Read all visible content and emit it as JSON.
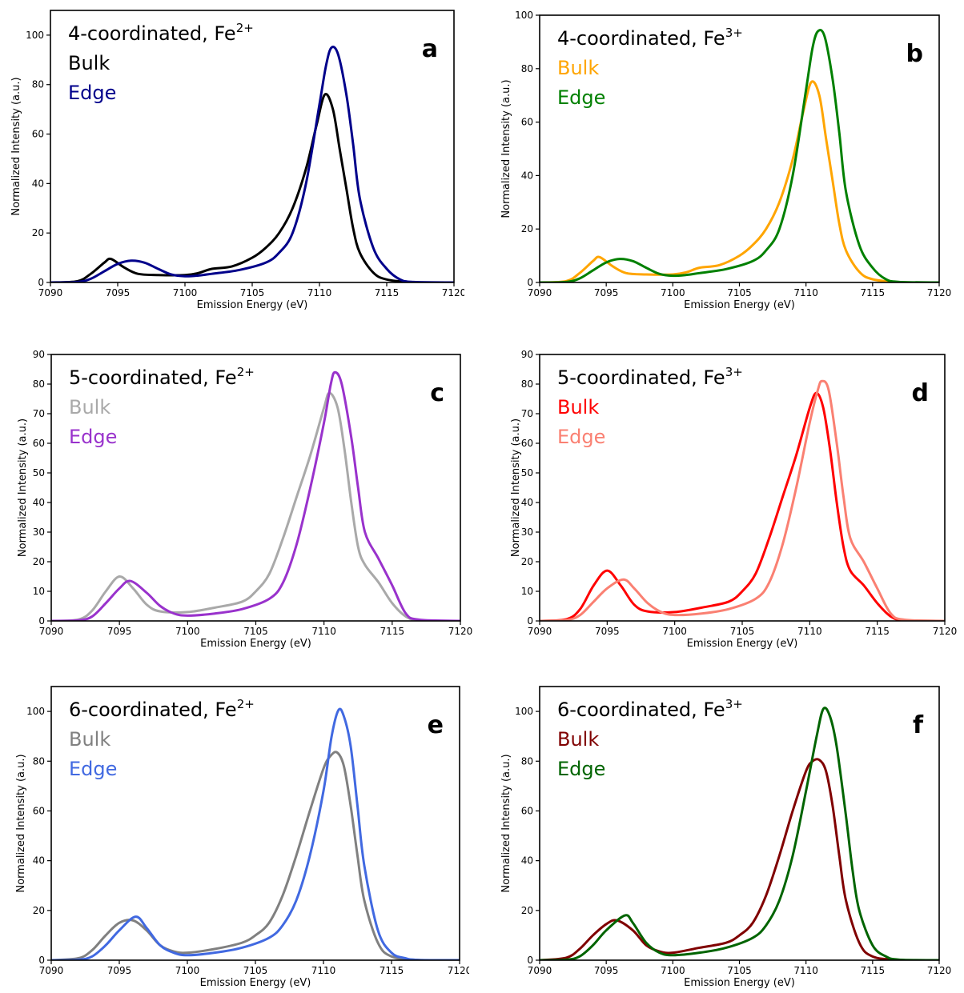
{
  "chart_data": [
    {
      "type": "line",
      "letter": "a",
      "title_text": "4-coordinated, Fe",
      "title_sup": "2+",
      "xlabel": "Emission Energy (eV)",
      "ylabel": "Normalized Intensity (a.u.)",
      "xlim": [
        7090,
        7120
      ],
      "ylim": [
        0,
        110
      ],
      "xticks": [
        7090,
        7095,
        7100,
        7105,
        7110,
        7115,
        7120
      ],
      "yticks": [
        0,
        20,
        40,
        60,
        80,
        100
      ],
      "series": [
        {
          "name": "Bulk",
          "color": "#000000",
          "x": [
            7090,
            7092,
            7093,
            7094,
            7094.5,
            7095.5,
            7096.5,
            7098,
            7100,
            7101,
            7102,
            7103.5,
            7105,
            7106,
            7107,
            7108,
            7109,
            7109.8,
            7110.4,
            7111,
            7111.5,
            7112,
            7112.5,
            7113,
            7114,
            7115,
            7117,
            7120
          ],
          "y": [
            0,
            0.5,
            3.5,
            8,
            9.5,
            6,
            3.5,
            3,
            3,
            3.8,
            5.5,
            6.5,
            10,
            14,
            20,
            30,
            46,
            64,
            76,
            70,
            54,
            38,
            22,
            12,
            4,
            1.2,
            0.1,
            0
          ]
        },
        {
          "name": "Edge",
          "color": "#00008B",
          "x": [
            7090,
            7092,
            7093,
            7094,
            7095,
            7096,
            7097,
            7098,
            7099,
            7100,
            7101,
            7102,
            7104,
            7106,
            7107,
            7108,
            7109,
            7110,
            7110.5,
            7110.9,
            7111.4,
            7112,
            7112.5,
            7113,
            7114,
            7115,
            7116,
            7117,
            7120
          ],
          "y": [
            0,
            0.2,
            1.5,
            4.5,
            7.5,
            8.8,
            8,
            5.5,
            3.2,
            2.5,
            2.8,
            3.5,
            5,
            8,
            12,
            20,
            40,
            72,
            88,
            95,
            92,
            76,
            56,
            34,
            14,
            5.5,
            1.2,
            0.2,
            0
          ]
        }
      ]
    },
    {
      "type": "line",
      "letter": "b",
      "title_text": "4-coordinated, Fe",
      "title_sup": "3+",
      "xlabel": "Emission Energy (eV)",
      "ylabel": "Normalized Intensity (a.u.)",
      "xlim": [
        7090,
        7120
      ],
      "ylim": [
        0,
        100
      ],
      "xticks": [
        7090,
        7095,
        7100,
        7105,
        7110,
        7115,
        7120
      ],
      "yticks": [
        0,
        20,
        40,
        60,
        80,
        100
      ],
      "series": [
        {
          "name": "Bulk",
          "color": "#FFA500",
          "x": [
            7090,
            7092,
            7093,
            7094,
            7094.5,
            7095.5,
            7096.5,
            7098,
            7100,
            7101,
            7102,
            7103.5,
            7105,
            7106,
            7107,
            7108,
            7109,
            7109.8,
            7110.4,
            7111,
            7111.5,
            7112,
            7112.5,
            7113,
            7114,
            7115,
            7117,
            7120
          ],
          "y": [
            0,
            0.5,
            3.5,
            8,
            9.5,
            6,
            3.5,
            3,
            3,
            3.8,
            5.5,
            6.5,
            10,
            14,
            20,
            30,
            46,
            64,
            75,
            70,
            54,
            38,
            22,
            12,
            4,
            1.2,
            0.1,
            0
          ]
        },
        {
          "name": "Edge",
          "color": "#008000",
          "x": [
            7090,
            7092,
            7093,
            7094,
            7095,
            7096,
            7097,
            7098,
            7099,
            7100,
            7101,
            7102,
            7104,
            7106,
            7107,
            7108,
            7109,
            7110,
            7110.5,
            7110.9,
            7111.4,
            7112,
            7112.5,
            7113,
            7114,
            7115,
            7116,
            7117,
            7120
          ],
          "y": [
            0,
            0.2,
            1.5,
            4.5,
            7.5,
            8.8,
            8,
            5.5,
            3.2,
            2.5,
            2.8,
            3.5,
            5,
            8,
            12,
            20,
            40,
            72,
            88,
            94,
            92,
            76,
            56,
            34,
            14,
            5.5,
            1.2,
            0.2,
            0
          ]
        }
      ]
    },
    {
      "type": "line",
      "letter": "c",
      "title_text": "5-coordinated, Fe",
      "title_sup": "2+",
      "xlabel": "Emission Energy (eV)",
      "ylabel": "Normalized Intensity (a.u.)",
      "xlim": [
        7090,
        7120
      ],
      "ylim": [
        0,
        90
      ],
      "xticks": [
        7090,
        7095,
        7100,
        7105,
        7110,
        7115,
        7120
      ],
      "yticks": [
        0,
        10,
        20,
        30,
        40,
        50,
        60,
        70,
        80,
        90
      ],
      "series": [
        {
          "name": "Bulk",
          "color": "#A9A9A9",
          "x": [
            7090,
            7092,
            7093,
            7094,
            7095,
            7096,
            7097,
            7098,
            7100,
            7102,
            7104,
            7105,
            7106,
            7107,
            7108,
            7109,
            7110,
            7110.4,
            7111,
            7111.5,
            7112,
            7112.5,
            7113,
            7114,
            7115,
            7116,
            7117,
            7120
          ],
          "y": [
            0,
            0.5,
            3.5,
            10,
            15,
            11,
            5.5,
            3.2,
            3,
            4.5,
            6.5,
            10,
            16,
            28,
            42,
            56,
            72,
            77,
            72,
            58,
            40,
            25,
            19,
            13,
            6,
            1.5,
            0.2,
            0
          ]
        },
        {
          "name": "Edge",
          "color": "#9932CC",
          "x": [
            7090,
            7092,
            7093,
            7094,
            7095,
            7095.8,
            7097,
            7098,
            7099,
            7100,
            7102,
            7104,
            7106,
            7107,
            7108,
            7109,
            7110,
            7110.5,
            7110.8,
            7111.3,
            7112,
            7112.5,
            7113,
            7114,
            7115,
            7116,
            7117,
            7120
          ],
          "y": [
            0,
            0.2,
            1.5,
            6,
            11,
            13.5,
            9.5,
            5,
            2.5,
            1.8,
            2.5,
            4,
            7.5,
            13,
            26,
            45,
            67,
            80,
            84,
            80,
            62,
            45,
            30,
            21,
            12,
            2.5,
            0.4,
            0
          ]
        }
      ]
    },
    {
      "type": "line",
      "letter": "d",
      "title_text": "5-coordinated, Fe",
      "title_sup": "3+",
      "xlabel": "Emission Energy (eV)",
      "ylabel": "Normalized Intensity (a.u.)",
      "xlim": [
        7090,
        7120
      ],
      "ylim": [
        0,
        90
      ],
      "xticks": [
        7090,
        7095,
        7100,
        7105,
        7110,
        7115,
        7120
      ],
      "yticks": [
        0,
        10,
        20,
        30,
        40,
        50,
        60,
        70,
        80,
        90
      ],
      "series": [
        {
          "name": "Bulk",
          "color": "#FF0000",
          "x": [
            7090,
            7092,
            7093,
            7094,
            7095,
            7096,
            7097,
            7098,
            7100,
            7102,
            7104,
            7105,
            7106,
            7107,
            7108,
            7109,
            7110,
            7110.5,
            7111,
            7111.5,
            7112,
            7112.5,
            7113,
            7114,
            7115,
            7116,
            7117,
            7120
          ],
          "y": [
            0,
            0.6,
            4,
            12,
            17,
            12,
            5.5,
            3.2,
            3,
            4.5,
            6.5,
            10,
            16,
            28,
            42,
            56,
            72,
            77,
            72,
            58,
            40,
            25,
            17,
            12,
            6,
            1.5,
            0.2,
            0
          ]
        },
        {
          "name": "Edge",
          "color": "#FA8072",
          "x": [
            7090,
            7092,
            7093,
            7094,
            7095,
            7096.2,
            7097,
            7098,
            7099,
            7100,
            7102,
            7104,
            7106,
            7107,
            7108,
            7109,
            7110,
            7110.6,
            7110.9,
            7111.4,
            7112,
            7112.5,
            7113,
            7114,
            7115,
            7116,
            7117,
            7120
          ],
          "y": [
            0,
            0.3,
            2,
            6.5,
            11,
            14,
            11,
            6,
            3,
            2,
            2.5,
            4,
            7.5,
            13,
            26,
            45,
            67,
            78,
            81,
            78,
            60,
            42,
            28,
            20,
            11,
            2.5,
            0.4,
            0
          ]
        }
      ]
    },
    {
      "type": "line",
      "letter": "e",
      "title_text": "6-coordinated, Fe",
      "title_sup": "2+",
      "xlabel": "Emission Energy (eV)",
      "ylabel": "Normalized Intensity (a.u.)",
      "xlim": [
        7090,
        7120
      ],
      "ylim": [
        0,
        110
      ],
      "xticks": [
        7090,
        7095,
        7100,
        7105,
        7110,
        7115,
        7120
      ],
      "yticks": [
        0,
        20,
        40,
        60,
        80,
        100
      ],
      "series": [
        {
          "name": "Bulk",
          "color": "#808080",
          "x": [
            7090,
            7092,
            7093,
            7094,
            7095,
            7096,
            7097,
            7098,
            7099,
            7100,
            7102,
            7104,
            7105,
            7106,
            7107,
            7108,
            7109,
            7110,
            7110.5,
            7111,
            7111.5,
            7112,
            7112.5,
            7113,
            7114,
            7115,
            7117,
            7120
          ],
          "y": [
            0,
            0.8,
            4,
            10,
            15,
            16,
            12,
            6,
            3.5,
            3,
            4.5,
            7,
            10,
            15,
            26,
            42,
            60,
            77,
            82,
            83.5,
            78,
            62,
            42,
            24,
            7,
            1.5,
            0.1,
            0
          ]
        },
        {
          "name": "Edge",
          "color": "#4169E1",
          "x": [
            7090,
            7092,
            7093,
            7094,
            7095,
            7096.2,
            7097,
            7098,
            7099,
            7100,
            7102,
            7104,
            7106,
            7107,
            7108,
            7109,
            7110,
            7110.6,
            7111.1,
            7111.5,
            7112,
            7112.5,
            7113,
            7114,
            7115,
            7116,
            7117,
            7120
          ],
          "y": [
            0,
            0.2,
            1.5,
            6,
            12,
            17.5,
            13,
            6,
            3,
            2,
            3,
            5,
            9,
            14,
            24,
            42,
            68,
            90,
            100.5,
            98,
            86,
            62,
            38,
            12,
            3,
            0.8,
            0.1,
            0
          ]
        }
      ]
    },
    {
      "type": "line",
      "letter": "f",
      "title_text": "6-coordinated, Fe",
      "title_sup": "3+",
      "xlabel": "Emission Energy (eV)",
      "ylabel": "Normalized Intensity (a.u.)",
      "xlim": [
        7090,
        7120
      ],
      "ylim": [
        0,
        110
      ],
      "xticks": [
        7090,
        7095,
        7100,
        7105,
        7110,
        7115,
        7120
      ],
      "yticks": [
        0,
        20,
        40,
        60,
        80,
        100
      ],
      "series": [
        {
          "name": "Bulk",
          "color": "#800000",
          "x": [
            7090,
            7092,
            7093,
            7094,
            7095,
            7095.8,
            7097,
            7098,
            7099,
            7100,
            7102,
            7104,
            7105,
            7106,
            7107,
            7108,
            7109,
            7110,
            7110.5,
            7111,
            7111.5,
            7112,
            7112.5,
            7113,
            7114,
            7115,
            7117,
            7120
          ],
          "y": [
            0,
            1,
            4.5,
            10,
            14.5,
            16,
            12,
            6,
            3.5,
            3,
            5,
            7,
            10,
            15,
            26,
            42,
            60,
            76,
            80,
            80.5,
            76,
            62,
            42,
            24,
            7,
            1.5,
            0.1,
            0
          ]
        },
        {
          "name": "Edge",
          "color": "#006400",
          "x": [
            7090,
            7092,
            7093,
            7094,
            7095,
            7096.4,
            7097,
            7098,
            7099,
            7100,
            7102,
            7104,
            7106,
            7107,
            7108,
            7109,
            7110,
            7110.8,
            7111.3,
            7111.8,
            7112.3,
            7113,
            7113.5,
            7114,
            7115,
            7116,
            7117,
            7120
          ],
          "y": [
            0,
            0.2,
            1.5,
            6,
            12,
            18,
            15,
            7,
            3,
            2,
            3,
            5,
            9,
            14,
            24,
            42,
            68,
            90,
            101,
            98,
            86,
            58,
            36,
            20,
            6,
            1.5,
            0.2,
            0
          ]
        }
      ]
    }
  ]
}
